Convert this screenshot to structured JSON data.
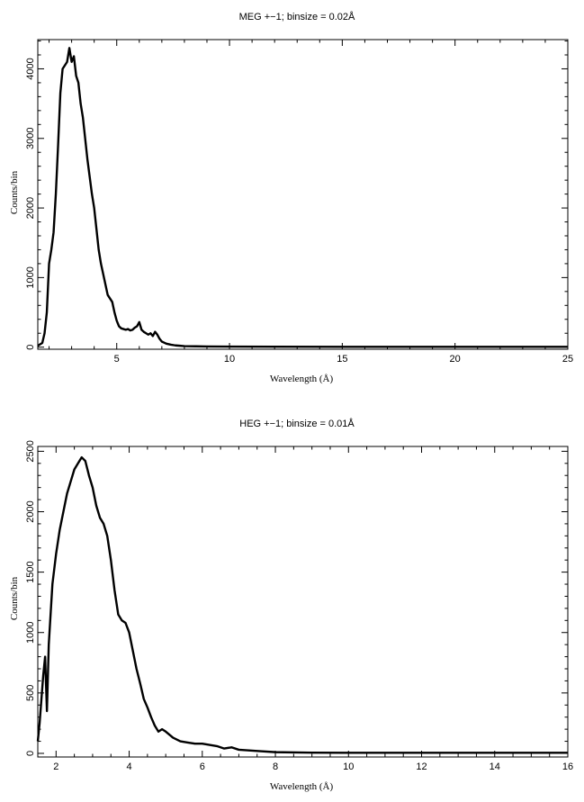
{
  "chart_data": [
    {
      "type": "line",
      "title": "MEG +−1; binsize = 0.02Å",
      "xlabel": "Wavelength (Å)",
      "ylabel": "Counts/bin",
      "xlim": [
        1.5,
        25
      ],
      "ylim": [
        -30,
        4420
      ],
      "x_ticks": [
        5,
        10,
        15,
        20,
        25
      ],
      "y_ticks": [
        0,
        1000,
        2000,
        3000,
        4000
      ],
      "grid": false,
      "color": "#000000",
      "series": [
        {
          "x": [
            1.5,
            1.7,
            1.8,
            1.9,
            2.0,
            2.1,
            2.2,
            2.3,
            2.4,
            2.5,
            2.6,
            2.7,
            2.8,
            2.9,
            3.0,
            3.1,
            3.2,
            3.3,
            3.4,
            3.5,
            3.6,
            3.7,
            3.8,
            3.9,
            4.0,
            4.1,
            4.2,
            4.3,
            4.4,
            4.5,
            4.6,
            4.7,
            4.8,
            4.9,
            5.0,
            5.1,
            5.2,
            5.3,
            5.4,
            5.5,
            5.6,
            5.7,
            5.8,
            5.9,
            6.0,
            6.1,
            6.2,
            6.3,
            6.4,
            6.5,
            6.6,
            6.7,
            6.8,
            6.9,
            7.0,
            7.2,
            7.4,
            7.6,
            7.8,
            8.0,
            8.5,
            9.0,
            10.0,
            12.0,
            15.0,
            20.0,
            25.0
          ],
          "y": [
            20,
            60,
            200,
            500,
            1200,
            1400,
            1650,
            2200,
            2900,
            3650,
            4000,
            4050,
            4100,
            4300,
            4100,
            4180,
            3900,
            3800,
            3500,
            3300,
            3000,
            2700,
            2450,
            2200,
            2000,
            1700,
            1400,
            1200,
            1050,
            900,
            750,
            700,
            650,
            500,
            380,
            300,
            270,
            260,
            250,
            260,
            240,
            250,
            280,
            300,
            360,
            250,
            220,
            200,
            180,
            200,
            160,
            220,
            180,
            120,
            80,
            50,
            35,
            25,
            20,
            15,
            12,
            10,
            8,
            6,
            5,
            5,
            5
          ]
        }
      ]
    },
    {
      "type": "line",
      "title": "HEG +−1; binsize = 0.01Å",
      "xlabel": "Wavelength (Å)",
      "ylabel": "Counts/bin",
      "xlim": [
        1.5,
        16
      ],
      "ylim": [
        -30,
        2540
      ],
      "x_ticks": [
        2,
        4,
        6,
        8,
        10,
        12,
        14,
        16
      ],
      "y_ticks": [
        0,
        500,
        1000,
        1500,
        2000,
        2500
      ],
      "grid": false,
      "color": "#000000",
      "series": [
        {
          "x": [
            1.5,
            1.55,
            1.6,
            1.65,
            1.7,
            1.75,
            1.8,
            1.85,
            1.9,
            2.0,
            2.1,
            2.2,
            2.3,
            2.4,
            2.5,
            2.6,
            2.7,
            2.8,
            2.9,
            3.0,
            3.1,
            3.2,
            3.3,
            3.4,
            3.5,
            3.6,
            3.7,
            3.8,
            3.9,
            4.0,
            4.1,
            4.2,
            4.3,
            4.4,
            4.5,
            4.6,
            4.7,
            4.8,
            4.9,
            5.0,
            5.2,
            5.4,
            5.6,
            5.8,
            6.0,
            6.2,
            6.4,
            6.6,
            6.8,
            7.0,
            7.5,
            8.0,
            9.0,
            10.0,
            12.0,
            14.0,
            16.0
          ],
          "y": [
            100,
            250,
            450,
            650,
            800,
            350,
            900,
            1150,
            1400,
            1650,
            1850,
            2000,
            2150,
            2250,
            2350,
            2400,
            2450,
            2420,
            2300,
            2200,
            2050,
            1950,
            1900,
            1800,
            1600,
            1350,
            1150,
            1100,
            1080,
            1000,
            850,
            700,
            580,
            450,
            380,
            300,
            230,
            180,
            200,
            180,
            130,
            100,
            90,
            80,
            80,
            70,
            60,
            40,
            50,
            30,
            20,
            10,
            6,
            5,
            5,
            5,
            5
          ]
        }
      ]
    }
  ]
}
